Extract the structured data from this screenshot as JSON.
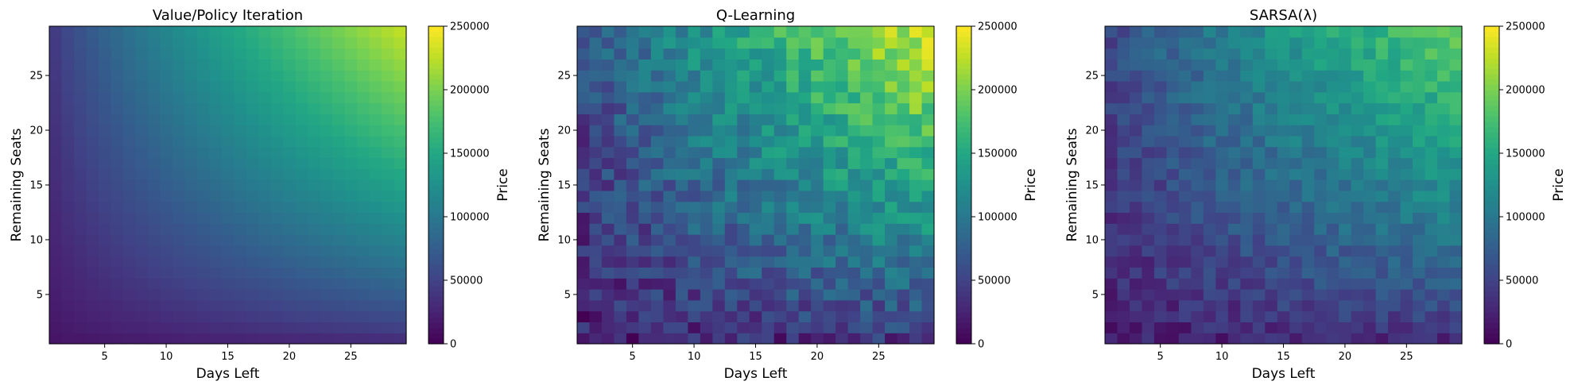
{
  "chart_data": [
    {
      "type": "heatmap",
      "title": "Value/Policy Iteration",
      "xlabel": "Days Left",
      "ylabel": "Remaining Seats",
      "colorbar_label": "Price",
      "colormap": "viridis",
      "x_range": [
        1,
        29
      ],
      "y_range": [
        1,
        29
      ],
      "x_ticks": [
        5,
        10,
        15,
        20,
        25
      ],
      "y_ticks": [
        5,
        10,
        15,
        20,
        25
      ],
      "color_range": [
        0,
        250000
      ],
      "colorbar_ticks": [
        "0",
        "50000",
        "100000",
        "150000",
        "200000",
        "250000"
      ],
      "pattern": "smooth",
      "corner_values": {
        "low_days_low_seats": 15000,
        "high_days_low_seats": 35000,
        "low_days_high_seats": 45000,
        "high_days_high_seats": 225000
      },
      "noise_amplitude": 0
    },
    {
      "type": "heatmap",
      "title": "Q-Learning",
      "xlabel": "Days Left",
      "ylabel": "Remaining Seats",
      "colorbar_label": "Price",
      "colormap": "viridis",
      "x_range": [
        1,
        29
      ],
      "y_range": [
        1,
        29
      ],
      "x_ticks": [
        5,
        10,
        15,
        20,
        25
      ],
      "y_ticks": [
        5,
        10,
        15,
        20,
        25
      ],
      "color_range": [
        0,
        250000
      ],
      "colorbar_ticks": [
        "0",
        "50000",
        "100000",
        "150000",
        "200000",
        "250000"
      ],
      "pattern": "noisy",
      "corner_values": {
        "low_days_low_seats": 20000,
        "high_days_low_seats": 40000,
        "low_days_high_seats": 60000,
        "high_days_high_seats": 230000
      },
      "noise_amplitude": 28000
    },
    {
      "type": "heatmap",
      "title": "SARSA(λ)",
      "xlabel": "Days Left",
      "ylabel": "Remaining Seats",
      "colorbar_label": "Price",
      "colormap": "viridis",
      "x_range": [
        1,
        29
      ],
      "y_range": [
        1,
        29
      ],
      "x_ticks": [
        5,
        10,
        15,
        20,
        25
      ],
      "y_ticks": [
        5,
        10,
        15,
        20,
        25
      ],
      "color_range": [
        0,
        250000
      ],
      "colorbar_ticks": [
        "0",
        "50000",
        "100000",
        "150000",
        "200000",
        "250000"
      ],
      "pattern": "noisy",
      "corner_values": {
        "low_days_low_seats": 20000,
        "high_days_low_seats": 35000,
        "low_days_high_seats": 55000,
        "high_days_high_seats": 190000
      },
      "noise_amplitude": 18000
    }
  ]
}
